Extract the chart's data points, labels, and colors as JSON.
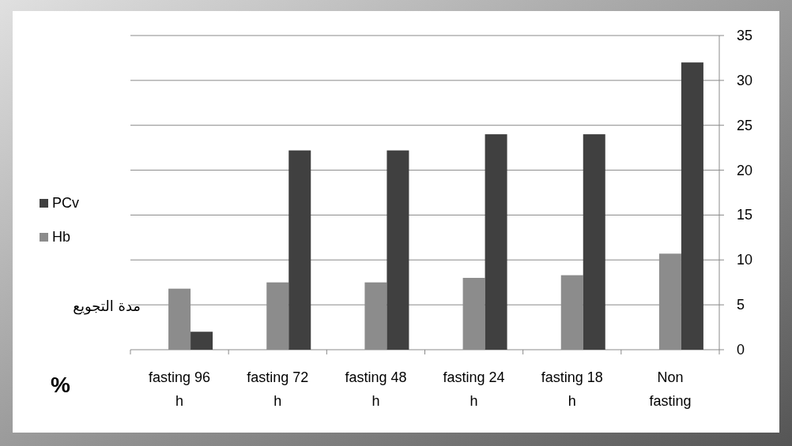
{
  "chart_data": {
    "type": "bar",
    "xlabel": "مدة التجويع",
    "ylabel": "%",
    "categories": [
      "fasting 96 h",
      "fasting 72 h",
      "fasting 48 h",
      "fasting 24 h",
      "fasting 18 h",
      "Non fasting"
    ],
    "series": [
      {
        "name": "Hb",
        "color": "#8c8c8c",
        "values": [
          6.8,
          7.5,
          7.5,
          8.0,
          8.3,
          10.7
        ]
      },
      {
        "name": "PCv",
        "color": "#404040",
        "values": [
          2.0,
          22.2,
          22.2,
          24.0,
          24.0,
          32.0
        ]
      }
    ],
    "ylim": [
      0,
      35
    ],
    "yticks": [
      0,
      5,
      10,
      15,
      20,
      25,
      30,
      35
    ],
    "grid": "y",
    "legend": "left"
  }
}
